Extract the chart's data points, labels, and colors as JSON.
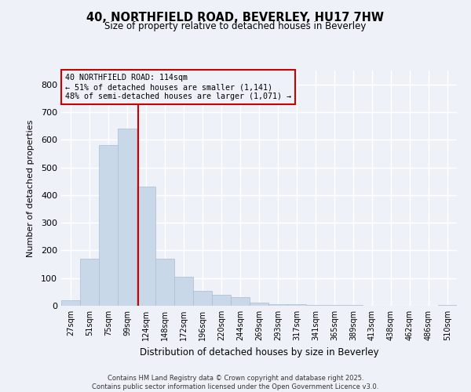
{
  "title": "40, NORTHFIELD ROAD, BEVERLEY, HU17 7HW",
  "subtitle": "Size of property relative to detached houses in Beverley",
  "xlabel": "Distribution of detached houses by size in Beverley",
  "ylabel": "Number of detached properties",
  "footer_line1": "Contains HM Land Registry data © Crown copyright and database right 2025.",
  "footer_line2": "Contains public sector information licensed under the Open Government Licence v3.0.",
  "bin_labels": [
    "27sqm",
    "51sqm",
    "75sqm",
    "99sqm",
    "124sqm",
    "148sqm",
    "172sqm",
    "196sqm",
    "220sqm",
    "244sqm",
    "269sqm",
    "293sqm",
    "317sqm",
    "341sqm",
    "365sqm",
    "389sqm",
    "413sqm",
    "438sqm",
    "462sqm",
    "486sqm",
    "510sqm"
  ],
  "bar_values": [
    20,
    170,
    580,
    640,
    430,
    170,
    105,
    55,
    40,
    30,
    10,
    5,
    5,
    2,
    2,
    2,
    1,
    1,
    1,
    0,
    3
  ],
  "bar_color": "#c8d8e8",
  "bar_edge_color": "#aabcce",
  "background_color": "#eef2f8",
  "grid_color": "#ffffff",
  "vline_color": "#cc0000",
  "annotation_box_color": "#cc0000",
  "annotation_text_line1": "40 NORTHFIELD ROAD: 114sqm",
  "annotation_text_line2": "← 51% of detached houses are smaller (1,141)",
  "annotation_text_line3": "48% of semi-detached houses are larger (1,071) →",
  "ylim": [
    0,
    850
  ],
  "yticks": [
    0,
    100,
    200,
    300,
    400,
    500,
    600,
    700,
    800
  ]
}
